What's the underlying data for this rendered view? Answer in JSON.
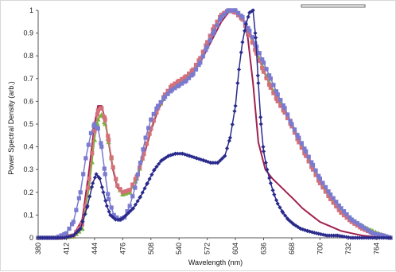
{
  "chart_data": {
    "type": "line",
    "xlabel": "Wavelength (nm)",
    "ylabel": "Power Spectral Density (arb.)",
    "xlim": [
      380,
      780
    ],
    "ylim": [
      0,
      1
    ],
    "x_ticks": [
      380,
      412,
      444,
      476,
      508,
      540,
      572,
      604,
      636,
      668,
      700,
      732,
      764
    ],
    "y_ticks": [
      0,
      0.1,
      0.2,
      0.3,
      0.4,
      0.5,
      0.6,
      0.7,
      0.8,
      0.9,
      1
    ],
    "y_tick_labels": [
      "0",
      "0.1",
      "0.2",
      "0.3",
      "0.4",
      "0.5",
      "0.6",
      "0.7",
      "0.8",
      "0.9",
      "1"
    ],
    "grid": false,
    "legend": "none",
    "series": [
      {
        "color": "#a12050",
        "marker": "line",
        "x": [
          380,
          405,
          420,
          430,
          438,
          444,
          448,
          452,
          456,
          460,
          465,
          470,
          476,
          484,
          492,
          500,
          508,
          516,
          524,
          532,
          540,
          548,
          556,
          564,
          572,
          580,
          588,
          596,
          604,
          612,
          618,
          624,
          630,
          638,
          646,
          654,
          662,
          670,
          680,
          690,
          700,
          712,
          724,
          736,
          748,
          760,
          772,
          780
        ],
        "y": [
          0,
          0,
          0.01,
          0.08,
          0.3,
          0.5,
          0.58,
          0.58,
          0.52,
          0.42,
          0.3,
          0.22,
          0.2,
          0.21,
          0.26,
          0.36,
          0.47,
          0.56,
          0.62,
          0.66,
          0.68,
          0.7,
          0.73,
          0.77,
          0.83,
          0.89,
          0.95,
          0.99,
          1.0,
          0.97,
          0.88,
          0.68,
          0.42,
          0.3,
          0.26,
          0.23,
          0.2,
          0.17,
          0.13,
          0.1,
          0.07,
          0.05,
          0.03,
          0.02,
          0.01,
          0.005,
          0,
          0
        ]
      },
      {
        "color": "#78b43c",
        "marker": "triangle",
        "x": [
          380,
          405,
          420,
          430,
          438,
          444,
          448,
          452,
          456,
          460,
          465,
          470,
          476,
          484,
          492,
          500,
          508,
          516,
          524,
          532,
          540,
          548,
          556,
          564,
          572,
          580,
          588,
          596,
          604,
          612,
          620,
          628,
          636,
          644,
          652,
          660,
          668,
          676,
          684,
          692,
          700,
          712,
          724,
          736,
          748,
          760,
          772,
          780
        ],
        "y": [
          0,
          0,
          0.005,
          0.04,
          0.22,
          0.43,
          0.52,
          0.54,
          0.5,
          0.42,
          0.31,
          0.23,
          0.19,
          0.2,
          0.26,
          0.37,
          0.48,
          0.57,
          0.62,
          0.66,
          0.68,
          0.7,
          0.73,
          0.78,
          0.85,
          0.92,
          0.98,
          1.0,
          1.0,
          0.97,
          0.9,
          0.82,
          0.74,
          0.67,
          0.61,
          0.56,
          0.5,
          0.44,
          0.37,
          0.31,
          0.25,
          0.18,
          0.12,
          0.08,
          0.05,
          0.03,
          0.01,
          0
        ]
      },
      {
        "color": "#d4707a",
        "marker": "square",
        "x": [
          380,
          405,
          420,
          430,
          438,
          444,
          448,
          452,
          456,
          460,
          465,
          470,
          476,
          484,
          492,
          500,
          508,
          516,
          524,
          532,
          540,
          548,
          556,
          564,
          572,
          580,
          588,
          596,
          604,
          612,
          620,
          628,
          636,
          644,
          652,
          660,
          668,
          676,
          684,
          692,
          700,
          712,
          724,
          736,
          748,
          760,
          772,
          780
        ],
        "y": [
          0,
          0,
          0.01,
          0.06,
          0.26,
          0.47,
          0.56,
          0.57,
          0.52,
          0.43,
          0.31,
          0.23,
          0.2,
          0.21,
          0.27,
          0.37,
          0.48,
          0.57,
          0.63,
          0.67,
          0.69,
          0.71,
          0.74,
          0.79,
          0.86,
          0.93,
          0.98,
          1.0,
          0.99,
          0.96,
          0.89,
          0.81,
          0.73,
          0.66,
          0.6,
          0.55,
          0.49,
          0.42,
          0.36,
          0.3,
          0.24,
          0.17,
          0.11,
          0.07,
          0.04,
          0.02,
          0.01,
          0
        ]
      },
      {
        "color": "#7a7ad0",
        "marker": "square",
        "x": [
          380,
          400,
          412,
          420,
          428,
          434,
          440,
          444,
          448,
          452,
          456,
          460,
          466,
          472,
          478,
          484,
          490,
          496,
          502,
          508,
          516,
          524,
          532,
          540,
          548,
          556,
          564,
          572,
          580,
          588,
          596,
          604,
          612,
          620,
          628,
          636,
          644,
          652,
          660,
          668,
          676,
          684,
          692,
          700,
          712,
          724,
          736,
          748,
          760,
          772,
          780
        ],
        "y": [
          0,
          0,
          0.02,
          0.07,
          0.2,
          0.35,
          0.46,
          0.5,
          0.48,
          0.4,
          0.28,
          0.17,
          0.1,
          0.08,
          0.09,
          0.14,
          0.22,
          0.33,
          0.44,
          0.52,
          0.58,
          0.62,
          0.65,
          0.67,
          0.69,
          0.72,
          0.77,
          0.84,
          0.91,
          0.97,
          1.0,
          1.0,
          0.97,
          0.91,
          0.84,
          0.77,
          0.7,
          0.63,
          0.57,
          0.5,
          0.44,
          0.38,
          0.32,
          0.26,
          0.19,
          0.13,
          0.08,
          0.05,
          0.02,
          0.01,
          0
        ]
      },
      {
        "color": "#2a2a8c",
        "marker": "diamond",
        "x": [
          380,
          410,
          420,
          428,
          436,
          442,
          446,
          450,
          454,
          458,
          462,
          468,
          474,
          480,
          488,
          496,
          504,
          512,
          520,
          528,
          536,
          544,
          552,
          560,
          568,
          576,
          584,
          592,
          598,
          604,
          608,
          612,
          616,
          620,
          624,
          627,
          630,
          633,
          636,
          640,
          644,
          648,
          652,
          658,
          664,
          670,
          678,
          686,
          696,
          708,
          720,
          735,
          750,
          765,
          780
        ],
        "y": [
          0,
          0,
          0.01,
          0.04,
          0.14,
          0.24,
          0.28,
          0.26,
          0.2,
          0.14,
          0.1,
          0.08,
          0.08,
          0.1,
          0.13,
          0.18,
          0.24,
          0.3,
          0.34,
          0.36,
          0.37,
          0.37,
          0.36,
          0.35,
          0.34,
          0.33,
          0.33,
          0.36,
          0.44,
          0.58,
          0.74,
          0.86,
          0.94,
          0.99,
          1.0,
          0.88,
          0.68,
          0.5,
          0.38,
          0.3,
          0.24,
          0.19,
          0.15,
          0.11,
          0.08,
          0.06,
          0.04,
          0.03,
          0.02,
          0.01,
          0.01,
          0,
          0,
          0,
          0
        ]
      }
    ]
  }
}
